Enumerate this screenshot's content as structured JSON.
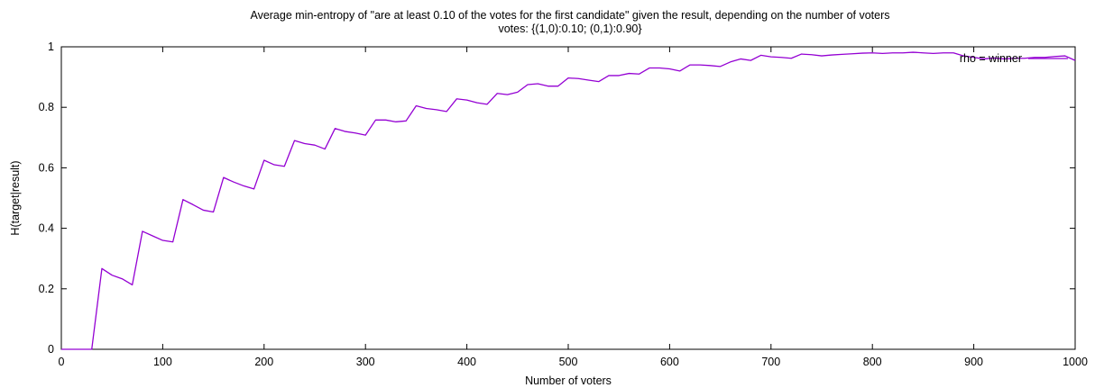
{
  "chart_data": {
    "type": "line",
    "title": "Average min-entropy of \"are at least 0.10 of the votes for the first candidate\" given the result, depending on the number of voters",
    "subtitle": "votes: {(1,0):0.10; (0,1):0.90}",
    "xlabel": "Number of voters",
    "ylabel": "H(target|result)",
    "xlim": [
      0,
      1000
    ],
    "ylim": [
      0,
      1
    ],
    "x_ticks": [
      "0",
      "100",
      "200",
      "300",
      "400",
      "500",
      "600",
      "700",
      "800",
      "900",
      "1000"
    ],
    "y_ticks": [
      "0",
      "0.2",
      "0.4",
      "0.6",
      "0.8",
      "1"
    ],
    "grid": false,
    "legend_position": "top-right",
    "series_color": "#9400d3",
    "series": [
      {
        "name": "rho = winner",
        "x": [
          0,
          10,
          20,
          30,
          40,
          50,
          60,
          70,
          80,
          90,
          100,
          110,
          120,
          130,
          140,
          150,
          160,
          170,
          180,
          190,
          200,
          210,
          220,
          230,
          240,
          250,
          260,
          270,
          280,
          290,
          300,
          310,
          320,
          330,
          340,
          350,
          360,
          370,
          380,
          390,
          400,
          410,
          420,
          430,
          440,
          450,
          460,
          470,
          480,
          490,
          500,
          510,
          520,
          530,
          540,
          550,
          560,
          570,
          580,
          590,
          600,
          610,
          620,
          630,
          640,
          650,
          660,
          670,
          680,
          690,
          700,
          710,
          720,
          730,
          740,
          750,
          760,
          770,
          780,
          790,
          800,
          810,
          820,
          830,
          840,
          850,
          860,
          870,
          880,
          890,
          900,
          910,
          920,
          930,
          940,
          950,
          960,
          970,
          980,
          990,
          1000
        ],
        "y": [
          0,
          0,
          0,
          0,
          0.267,
          0.245,
          0.233,
          0.213,
          0.39,
          0.375,
          0.36,
          0.355,
          0.495,
          0.478,
          0.46,
          0.454,
          0.568,
          0.553,
          0.54,
          0.53,
          0.625,
          0.61,
          0.605,
          0.69,
          0.68,
          0.675,
          0.662,
          0.73,
          0.72,
          0.715,
          0.708,
          0.758,
          0.758,
          0.752,
          0.755,
          0.805,
          0.796,
          0.792,
          0.786,
          0.828,
          0.824,
          0.815,
          0.81,
          0.846,
          0.842,
          0.85,
          0.875,
          0.878,
          0.87,
          0.87,
          0.897,
          0.895,
          0.89,
          0.885,
          0.905,
          0.905,
          0.912,
          0.91,
          0.93,
          0.93,
          0.927,
          0.92,
          0.94,
          0.94,
          0.938,
          0.935,
          0.95,
          0.96,
          0.955,
          0.972,
          0.967,
          0.965,
          0.962,
          0.976,
          0.974,
          0.97,
          0.973,
          0.975,
          0.977,
          0.979,
          0.98,
          0.978,
          0.98,
          0.98,
          0.982,
          0.98,
          0.978,
          0.98,
          0.98,
          0.97,
          0.965,
          0.96,
          0.963,
          0.96,
          0.962,
          0.962,
          0.965,
          0.965,
          0.968,
          0.97,
          0.955
        ]
      }
    ]
  }
}
